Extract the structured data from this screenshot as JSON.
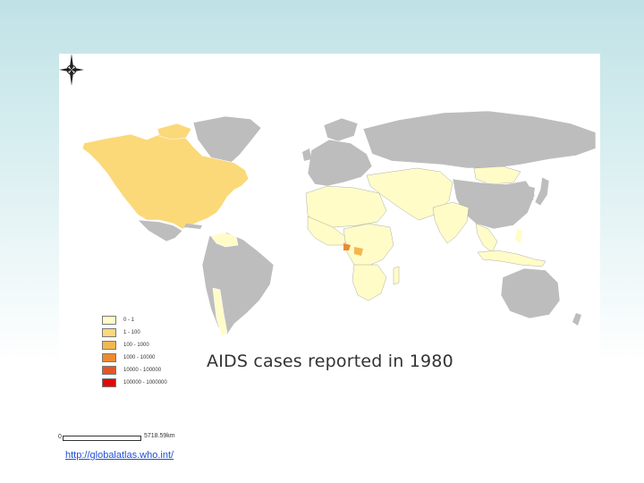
{
  "map": {
    "title": "AIDS cases reported in 1980",
    "legend": [
      {
        "label": "0 - 1",
        "color": "#fffcc8"
      },
      {
        "label": "1 - 100",
        "color": "#fbd979"
      },
      {
        "label": "100 - 1000",
        "color": "#f4b74f"
      },
      {
        "label": "1000 - 10000",
        "color": "#ee8a2f"
      },
      {
        "label": "10000 - 100000",
        "color": "#e55525"
      },
      {
        "label": "100000 - 1000000",
        "color": "#e10a0a"
      }
    ],
    "no_data_color": "#bdbdbd",
    "scale_bar": {
      "start_label": "0",
      "end_label": "5718.59km"
    },
    "compass_icon": "compass-rose-icon"
  },
  "footer": {
    "source_link": "http://globalatlas.who.int/"
  }
}
